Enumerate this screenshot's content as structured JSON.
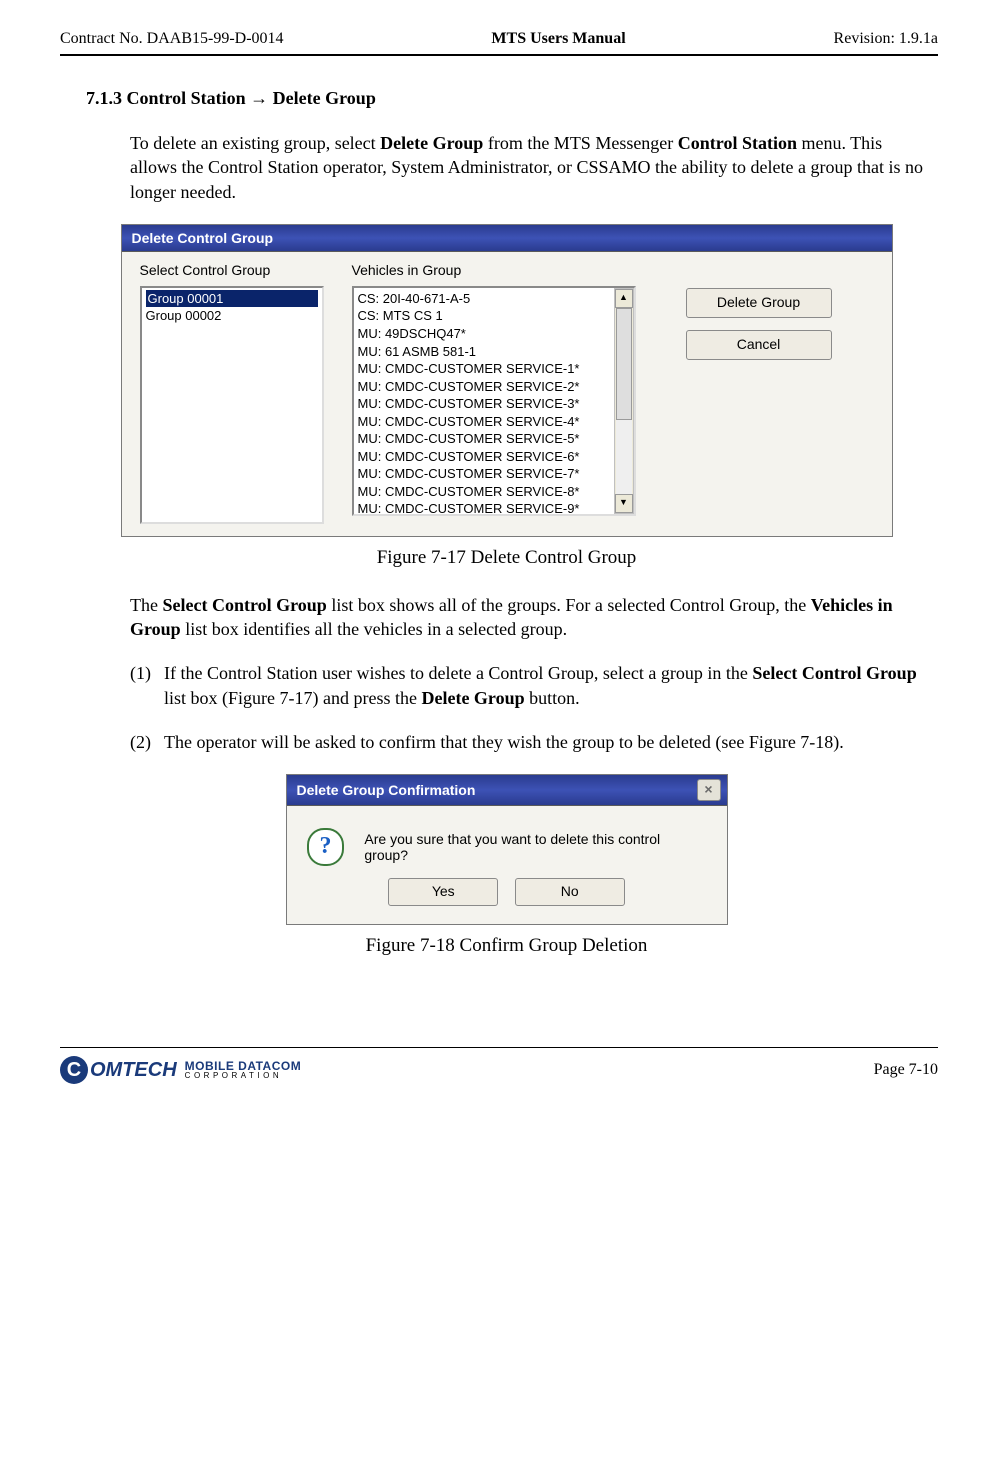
{
  "header": {
    "left": "Contract No. DAAB15-99-D-0014",
    "center": "MTS Users Manual",
    "right": "Revision:  1.9.1a"
  },
  "section_title": "7.1.3  Control Station → Delete Group",
  "intro": {
    "pre1": "To delete an existing group, select ",
    "bold1": "Delete Group",
    "mid1": " from the MTS Messenger ",
    "bold2": "Control Station",
    "post1": " menu.  This allows the Control Station operator, System Administrator, or CSSAMO the ability to delete a group that is no longer needed."
  },
  "dlg1": {
    "title": "Delete Control Group",
    "label_groups": "Select Control Group",
    "label_vehicles": "Vehicles in Group",
    "groups": [
      "Group 00001",
      "Group 00002"
    ],
    "vehicles": [
      "CS: 20I-40-671-A-5",
      "CS: MTS CS 1",
      "MU: 49DSCHQ47*",
      "MU: 61 ASMB 581-1",
      "MU: CMDC-CUSTOMER SERVICE-1*",
      "MU: CMDC-CUSTOMER SERVICE-2*",
      "MU: CMDC-CUSTOMER SERVICE-3*",
      "MU: CMDC-CUSTOMER SERVICE-4*",
      "MU: CMDC-CUSTOMER SERVICE-5*",
      "MU: CMDC-CUSTOMER SERVICE-6*",
      "MU: CMDC-CUSTOMER SERVICE-7*",
      "MU: CMDC-CUSTOMER SERVICE-8*",
      "MU: CMDC-CUSTOMER SERVICE-9*"
    ],
    "btn_delete": "Delete Group",
    "btn_cancel": "Cancel"
  },
  "caption1": "Figure 7-17   Delete Control Group",
  "para2": {
    "pre": "The ",
    "b1": "Select Control Group",
    "mid1": " list box shows all of the groups.  For a selected Control Group, the ",
    "b2": "Vehicles in Group",
    "post": " list box identifies all the vehicles in a selected group."
  },
  "step1": {
    "num": "(1)",
    "pre": "If the Control Station user wishes to delete a Control Group, select a group in the ",
    "b1": "Select Control Group",
    "mid": " list box (Figure 7-17) and press the ",
    "b2": "Delete Group",
    "post": " button."
  },
  "step2": {
    "num": "(2)",
    "text": "The operator will be asked to confirm that they wish the group to be deleted (see Figure 7-18)."
  },
  "dlg2": {
    "title": "Delete Group Confirmation",
    "message": "Are you sure that you want to delete this control group?",
    "btn_yes": "Yes",
    "btn_no": "No"
  },
  "caption2": "Figure 7-18   Confirm Group Deletion",
  "footer": {
    "logo_c": "C",
    "logo_omtech": "OMTECH",
    "logo_md": "MOBILE DATACOM",
    "logo_corp": "CORPORATION",
    "page": "Page 7-10"
  }
}
